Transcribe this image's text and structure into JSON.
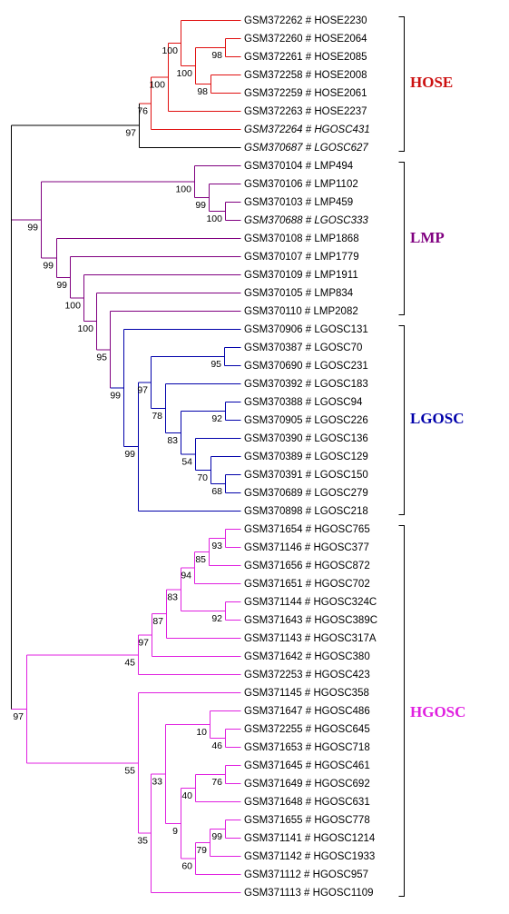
{
  "colors": {
    "black": "#000000",
    "hose": "#e01010",
    "lmp": "#800080",
    "lgosc": "#0000aa",
    "hgosc": "#e020e0"
  },
  "groups": [
    {
      "key": "hose",
      "label": "HOSE",
      "color": "#cc1010"
    },
    {
      "key": "lmp",
      "label": "LMP",
      "color": "#800080"
    },
    {
      "key": "lgosc",
      "label": "LGOSC",
      "color": "#0000aa"
    },
    {
      "key": "hgosc",
      "label": "HGOSC",
      "color": "#e020e0"
    }
  ],
  "leaves": [
    {
      "label": "GSM372262 # HOSE2230",
      "italic": false
    },
    {
      "label": "GSM372260 # HOSE2064",
      "italic": false
    },
    {
      "label": "GSM372261 # HOSE2085",
      "italic": false
    },
    {
      "label": "GSM372258 # HOSE2008",
      "italic": false
    },
    {
      "label": "GSM372259 # HOSE2061",
      "italic": false
    },
    {
      "label": "GSM372263 # HOSE2237",
      "italic": false
    },
    {
      "label": "GSM372264 # HGOSC431",
      "italic": true
    },
    {
      "label": "GSM370687 # LGOSC627",
      "italic": true
    },
    {
      "label": "GSM370104 # LMP494",
      "italic": false
    },
    {
      "label": "GSM370106 # LMP1102",
      "italic": false
    },
    {
      "label": "GSM370103 # LMP459",
      "italic": false
    },
    {
      "label": "GSM370688 # LGOSC333",
      "italic": true
    },
    {
      "label": "GSM370108 # LMP1868",
      "italic": false
    },
    {
      "label": "GSM370107 # LMP1779",
      "italic": false
    },
    {
      "label": "GSM370109 # LMP1911",
      "italic": false
    },
    {
      "label": "GSM370105 # LMP834",
      "italic": false
    },
    {
      "label": "GSM370110 # LMP2082",
      "italic": false
    },
    {
      "label": "GSM370906 # LGOSC131",
      "italic": false
    },
    {
      "label": "GSM370387 # LGOSC70",
      "italic": false
    },
    {
      "label": "GSM370690 # LGOSC231",
      "italic": false
    },
    {
      "label": "GSM370392 # LGOSC183",
      "italic": false
    },
    {
      "label": "GSM370388 # LGOSC94",
      "italic": false
    },
    {
      "label": "GSM370905 # LGOSC226",
      "italic": false
    },
    {
      "label": "GSM370390 # LGOSC136",
      "italic": false
    },
    {
      "label": "GSM370389 # LGOSC129",
      "italic": false
    },
    {
      "label": "GSM370391 # LGOSC150",
      "italic": false
    },
    {
      "label": "GSM370689 # LGOSC279",
      "italic": false
    },
    {
      "label": "GSM370898 # LGOSC218",
      "italic": false
    },
    {
      "label": "GSM371654 # HGOSC765",
      "italic": false
    },
    {
      "label": "GSM371146 # HGOSC377",
      "italic": false
    },
    {
      "label": "GSM371656 # HGOSC872",
      "italic": false
    },
    {
      "label": "GSM371651 # HGOSC702",
      "italic": false
    },
    {
      "label": "GSM371144 # HGOSC324C",
      "italic": false
    },
    {
      "label": "GSM371643 # HGOSC389C",
      "italic": false
    },
    {
      "label": "GSM371143 # HGOSC317A",
      "italic": false
    },
    {
      "label": "GSM371642 # HGOSC380",
      "italic": false
    },
    {
      "label": "GSM372253 # HGOSC423",
      "italic": false
    },
    {
      "label": "GSM371145 # HGOSC358",
      "italic": false
    },
    {
      "label": "GSM371647 # HGOSC486",
      "italic": false
    },
    {
      "label": "GSM372255 # HGOSC645",
      "italic": false
    },
    {
      "label": "GSM371653 # HGOSC718",
      "italic": false
    },
    {
      "label": "GSM371645 # HGOSC461",
      "italic": false
    },
    {
      "label": "GSM371649 # HGOSC692",
      "italic": false
    },
    {
      "label": "GSM371648 # HGOSC631",
      "italic": false
    },
    {
      "label": "GSM371655 # HGOSC778",
      "italic": false
    },
    {
      "label": "GSM371141 # HGOSC1214",
      "italic": false
    },
    {
      "label": "GSM371142 # HGOSC1933",
      "italic": false
    },
    {
      "label": "GSM371112 # HGOSC957",
      "italic": false
    },
    {
      "label": "GSM371113 # HGOSC1109",
      "italic": false
    }
  ],
  "bootstrap": [
    "98",
    "100",
    "98",
    "100",
    "100",
    "76",
    "97",
    "100",
    "99",
    "100",
    "99",
    "99",
    "100",
    "100",
    "95",
    "99",
    "97",
    "95",
    "78",
    "92",
    "83",
    "54",
    "70",
    "68",
    "99",
    "93",
    "85",
    "94",
    "83",
    "92",
    "87",
    "97",
    "45",
    "97",
    "10",
    "46",
    "76",
    "40",
    "33",
    "99",
    "79",
    "9",
    "60",
    "55",
    "35"
  ]
}
